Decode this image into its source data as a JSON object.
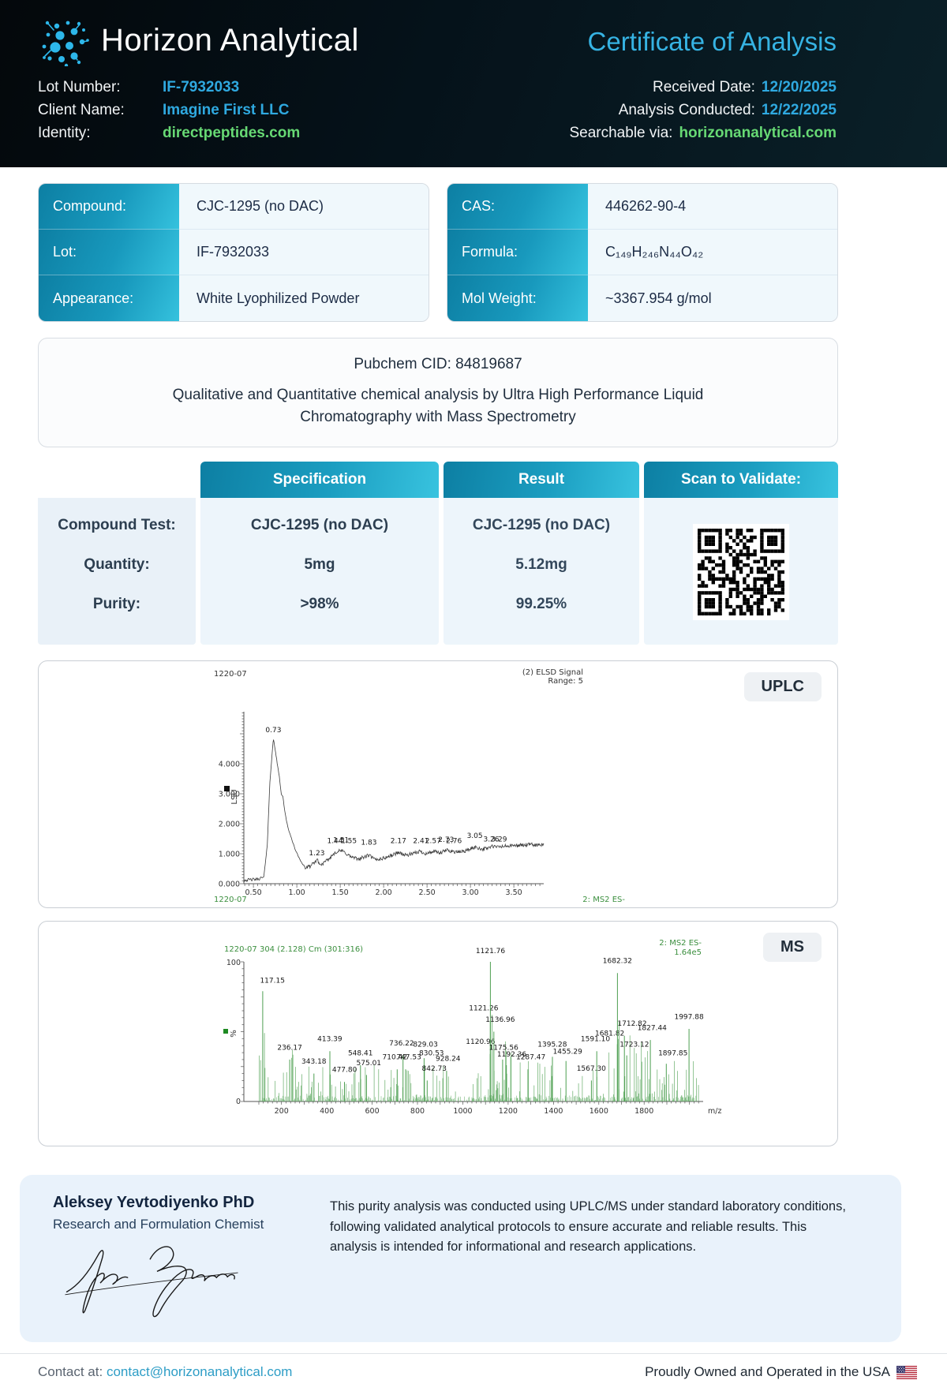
{
  "header": {
    "company": "Horizon Analytical",
    "doc_title": "Certificate of Analysis",
    "fields_left": [
      {
        "label": "Lot Number:",
        "value": "IF-7932033"
      },
      {
        "label": "Client Name:",
        "value": "Imagine First LLC"
      },
      {
        "label": "Identity:",
        "value": "directpeptides.com"
      }
    ],
    "fields_right": [
      {
        "label": "Received Date:",
        "value": "12/20/2025"
      },
      {
        "label": "Analysis Conducted:",
        "value": "12/22/2025"
      },
      {
        "label": "Searchable via:",
        "value": "horizonanalytical.com"
      }
    ]
  },
  "info_cards": {
    "left": [
      {
        "label": "Compound:",
        "value": "CJC-1295 (no DAC)"
      },
      {
        "label": "Lot:",
        "value": "IF-7932033"
      },
      {
        "label": "Appearance:",
        "value": "White Lyophilized Powder"
      }
    ],
    "right": [
      {
        "label": "CAS:",
        "value": "446262-90-4"
      },
      {
        "label": "Formula:",
        "value": "C₁₄₉H₂₄₆N₄₄O₄₂"
      },
      {
        "label": "Mol Weight:",
        "value": "~3367.954 g/mol"
      }
    ]
  },
  "pubchem": {
    "line1": "Pubchem CID: 84819687",
    "line2": "Qualitative and Quantitative chemical analysis by Ultra High Performance Liquid Chromatography with Mass Spectrometry"
  },
  "spec_table": {
    "headers": [
      "Specification",
      "Result",
      "Scan to Validate:"
    ],
    "rows": [
      {
        "label": "Compound Test:",
        "spec": "CJC-1295 (no DAC)",
        "result": "CJC-1295 (no DAC)"
      },
      {
        "label": "Quantity:",
        "spec": "5mg",
        "result": "5.12mg"
      },
      {
        "label": "Purity:",
        "spec": ">98%",
        "result": "99.25%"
      }
    ]
  },
  "uplc_badge": "UPLC",
  "ms_badge": "MS",
  "chart_data": [
    {
      "type": "line",
      "title": "1220-07",
      "signal_label": "(2) ELSD Signal",
      "range_label": "Range: 5",
      "ylabel": "LSU",
      "xlim": [
        0.39,
        3.85
      ],
      "ylim": [
        0,
        5.6
      ],
      "xticks": [
        0.5,
        1.0,
        1.5,
        2.0,
        2.5,
        3.0,
        3.5
      ],
      "yticks": [
        0.0,
        1.0,
        2.0,
        3.0,
        4.0
      ],
      "footer_left": "1220-07",
      "footer_right": "2: MS2 ES-",
      "main_peak_rt": 0.73,
      "main_peak_height": 4.85,
      "peak_labels": [
        [
          0.73,
          0.73,
          5.05
        ],
        [
          1.23,
          1.23,
          0.95
        ],
        [
          1.44,
          1.44,
          1.35
        ],
        [
          1.51,
          1.51,
          1.38
        ],
        [
          1.55,
          1.6,
          1.35
        ],
        [
          1.83,
          1.83,
          1.3
        ],
        [
          2.17,
          2.17,
          1.35
        ],
        [
          2.41,
          2.43,
          1.35
        ],
        [
          2.57,
          2.57,
          1.35
        ],
        [
          2.73,
          2.72,
          1.39
        ],
        [
          2.76,
          2.81,
          1.35
        ],
        [
          3.05,
          3.05,
          1.53
        ],
        [
          3.26,
          3.24,
          1.41
        ],
        [
          3.29,
          3.33,
          1.41
        ]
      ],
      "anchors": [
        [
          0.39,
          0.12
        ],
        [
          0.55,
          0.15
        ],
        [
          0.62,
          0.22
        ],
        [
          0.66,
          1.3
        ],
        [
          0.69,
          3.4
        ],
        [
          0.73,
          4.85
        ],
        [
          0.76,
          4.3
        ],
        [
          0.78,
          3.9
        ],
        [
          0.8,
          3.55
        ],
        [
          0.82,
          3.0
        ],
        [
          0.84,
          2.9
        ],
        [
          0.86,
          2.45
        ],
        [
          0.88,
          2.1
        ],
        [
          0.91,
          1.75
        ],
        [
          0.94,
          1.5
        ],
        [
          0.98,
          1.15
        ],
        [
          1.02,
          0.9
        ],
        [
          1.06,
          0.68
        ],
        [
          1.1,
          0.52
        ],
        [
          1.15,
          0.58
        ],
        [
          1.2,
          0.68
        ],
        [
          1.23,
          0.82
        ],
        [
          1.27,
          0.62
        ],
        [
          1.32,
          0.7
        ],
        [
          1.38,
          0.85
        ],
        [
          1.44,
          1.05
        ],
        [
          1.51,
          1.1
        ],
        [
          1.55,
          1.05
        ],
        [
          1.62,
          0.9
        ],
        [
          1.7,
          0.82
        ],
        [
          1.77,
          0.88
        ],
        [
          1.83,
          0.95
        ],
        [
          1.9,
          0.8
        ],
        [
          2.0,
          0.85
        ],
        [
          2.1,
          0.95
        ],
        [
          2.17,
          1.05
        ],
        [
          2.25,
          0.95
        ],
        [
          2.35,
          1.0
        ],
        [
          2.41,
          1.08
        ],
        [
          2.5,
          1.0
        ],
        [
          2.57,
          1.08
        ],
        [
          2.65,
          1.02
        ],
        [
          2.73,
          1.12
        ],
        [
          2.76,
          1.1
        ],
        [
          2.85,
          1.05
        ],
        [
          2.95,
          1.1
        ],
        [
          3.05,
          1.22
        ],
        [
          3.15,
          1.15
        ],
        [
          3.26,
          1.25
        ],
        [
          3.29,
          1.22
        ],
        [
          3.4,
          1.25
        ],
        [
          3.55,
          1.28
        ],
        [
          3.7,
          1.3
        ],
        [
          3.85,
          1.28
        ]
      ]
    },
    {
      "type": "impulse",
      "header_left": "1220-07 304 (2.128) Cm (301:316)",
      "header_right_1": "2: MS2 ES-",
      "header_right_2": "1.64e5",
      "ylabel": "%",
      "ytick_top": "100",
      "ytick_bottom": "0",
      "xlabel": "m/z",
      "xlim": [
        100,
        2050
      ],
      "xticks": [
        200,
        400,
        600,
        800,
        1000,
        1200,
        1400,
        1600,
        1800
      ],
      "labeled_peaks": [
        [
          117.15,
          79,
          160,
          84
        ],
        [
          236.17,
          30,
          236,
          36
        ],
        [
          343.18,
          20,
          343,
          26
        ],
        [
          413.39,
          36,
          413,
          42
        ],
        [
          477.8,
          14,
          478,
          20
        ],
        [
          548.41,
          26,
          548,
          32
        ],
        [
          575.01,
          19,
          585,
          25
        ],
        [
          710.42,
          23,
          700,
          29
        ],
        [
          736.22,
          33,
          730,
          39
        ],
        [
          747.53,
          23,
          762,
          29
        ],
        [
          829.03,
          31,
          835,
          38
        ],
        [
          830.53,
          26,
          862,
          32
        ],
        [
          842.73,
          15,
          874,
          21
        ],
        [
          928.24,
          22,
          935,
          28
        ],
        [
          1120.96,
          34,
          1078,
          40
        ],
        [
          1121.26,
          58,
          1092,
          64
        ],
        [
          1121.76,
          100,
          1122,
          105
        ],
        [
          1136.96,
          50,
          1165,
          56
        ],
        [
          1175.56,
          30,
          1180,
          36
        ],
        [
          1192.36,
          26,
          1216,
          31
        ],
        [
          1287.47,
          23,
          1300,
          29
        ],
        [
          1395.28,
          32,
          1395,
          38
        ],
        [
          1455.29,
          29,
          1462,
          33
        ],
        [
          1567.3,
          15,
          1567,
          21
        ],
        [
          1591.1,
          36,
          1585,
          42
        ],
        [
          1681.82,
          41,
          1648,
          46
        ],
        [
          1682.32,
          92,
          1682,
          98
        ],
        [
          1712.82,
          47,
          1747,
          53
        ],
        [
          1723.12,
          33,
          1757,
          38
        ],
        [
          1827.44,
          44,
          1835,
          50
        ],
        [
          1897.85,
          27,
          1927,
          32
        ],
        [
          1997.88,
          52,
          1998,
          58
        ]
      ],
      "noise_zones": [
        [
          100,
          270,
          0.75,
          40
        ],
        [
          270,
          560,
          0.5,
          26
        ],
        [
          560,
          960,
          0.48,
          27
        ],
        [
          960,
          1090,
          0.42,
          22
        ],
        [
          1090,
          1260,
          0.85,
          46
        ],
        [
          1260,
          1500,
          0.5,
          30
        ],
        [
          1500,
          1640,
          0.45,
          24
        ],
        [
          1640,
          1830,
          0.92,
          55
        ],
        [
          1830,
          2045,
          0.55,
          30
        ]
      ]
    }
  ],
  "signature": {
    "name": "Aleksey Yevtodiyenko PhD",
    "role": "Research and Formulation Chemist",
    "statement": "This purity analysis was conducted using UPLC/MS under standard laboratory conditions, following validated analytical protocols to ensure accurate and reliable results. This analysis is intended for informational and research applications."
  },
  "footer": {
    "contact_label": "Contact at: ",
    "contact_email": "contact@horizonanalytical.com",
    "right_text": "Proudly Owned and Operated in the USA"
  },
  "colors": {
    "accent_blue": "#2fa9e0",
    "accent_green": "#67d974",
    "title_blue": "#36b3e3",
    "teal_dark": "#0d7fa3",
    "teal_light": "#38c3df",
    "ms_green": "#3b8f3e",
    "navy_text": "#1c2b45"
  }
}
